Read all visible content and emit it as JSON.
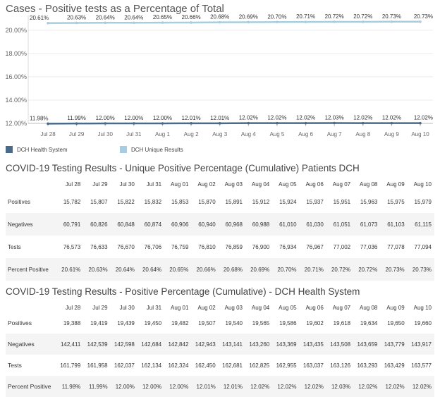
{
  "chart_data": {
    "type": "line",
    "title": "Cases - Positive tests as a Percentage of Total",
    "categories": [
      "Jul 28",
      "Jul 29",
      "Jul 30",
      "Jul 31",
      "Aug 1",
      "Aug 2",
      "Aug 3",
      "Aug 4",
      "Aug 5",
      "Aug 6",
      "Aug 7",
      "Aug 8",
      "Aug 9",
      "Aug 10"
    ],
    "y_ticks": [
      "12.00%",
      "14.00%",
      "16.00%",
      "18.00%",
      "20.00%"
    ],
    "ylim": [
      12,
      20.9
    ],
    "grid": true,
    "legend_position": "bottom-left",
    "series": [
      {
        "name": "DCH Unique Results",
        "color": "#a9cde0",
        "values": [
          20.61,
          20.63,
          20.64,
          20.64,
          20.65,
          20.66,
          20.68,
          20.69,
          20.7,
          20.71,
          20.72,
          20.72,
          20.73,
          20.73
        ],
        "labels": [
          "20.61%",
          "20.63%",
          "20.64%",
          "20.64%",
          "20.65%",
          "20.66%",
          "20.68%",
          "20.69%",
          "20.70%",
          "20.71%",
          "20.72%",
          "20.72%",
          "20.73%",
          "20.73%"
        ]
      },
      {
        "name": "DCH Health System",
        "color": "#4a6a8a",
        "values": [
          11.98,
          11.99,
          12.0,
          12.0,
          12.0,
          12.01,
          12.01,
          12.02,
          12.02,
          12.02,
          12.03,
          12.02,
          12.02,
          12.02
        ],
        "labels": [
          "11.98%",
          "11.99%",
          "12.00%",
          "12.00%",
          "12.00%",
          "12.01%",
          "12.01%",
          "12.02%",
          "12.02%",
          "12.02%",
          "12.03%",
          "12.02%",
          "12.02%",
          "12.02%"
        ]
      }
    ]
  },
  "legend": {
    "health_system": "DCH Health System",
    "unique_results": "DCH Unique Results",
    "health_color": "#4a6a8a",
    "unique_color": "#a9cde0"
  },
  "table1": {
    "title": "COVID-19 Testing Results - Unique Positive Percentage (Cumulative) Patients DCH",
    "headers": [
      "",
      "Jul 28",
      "Jul 29",
      "Jul 30",
      "Jul 31",
      "Aug 01",
      "Aug 02",
      "Aug 03",
      "Aug 04",
      "Aug 05",
      "Aug 06",
      "Aug 07",
      "Aug 08",
      "Aug 09",
      "Aug 10"
    ],
    "rows": [
      [
        "Positives",
        "15,782",
        "15,807",
        "15,822",
        "15,832",
        "15,853",
        "15,870",
        "15,891",
        "15,912",
        "15,924",
        "15,937",
        "15,951",
        "15,963",
        "15,975",
        "15,979"
      ],
      [
        "Negatives",
        "60,791",
        "60,826",
        "60,848",
        "60,874",
        "60,906",
        "60,940",
        "60,968",
        "60,988",
        "61,010",
        "61,030",
        "61,051",
        "61,073",
        "61,103",
        "61,115"
      ],
      [
        "Tests",
        "76,573",
        "76,633",
        "76,670",
        "76,706",
        "76,759",
        "76,810",
        "76,859",
        "76,900",
        "76,934",
        "76,967",
        "77,002",
        "77,036",
        "77,078",
        "77,094"
      ],
      [
        "Percent Positive",
        "20.61%",
        "20.63%",
        "20.64%",
        "20.64%",
        "20.65%",
        "20.66%",
        "20.68%",
        "20.69%",
        "20.70%",
        "20.71%",
        "20.72%",
        "20.72%",
        "20.73%",
        "20.73%"
      ]
    ]
  },
  "table2": {
    "title": "COVID-19 Testing Results - Positive Percentage (Cumulative) - DCH Health System",
    "headers": [
      "",
      "Jul 28",
      "Jul 29",
      "Jul 30",
      "Jul 31",
      "Aug 01",
      "Aug 02",
      "Aug 03",
      "Aug 04",
      "Aug 05",
      "Aug 06",
      "Aug 07",
      "Aug 08",
      "Aug 09",
      "Aug 10"
    ],
    "rows": [
      [
        "Positives",
        "19,388",
        "19,419",
        "19,439",
        "19,450",
        "19,482",
        "19,507",
        "19,540",
        "19,565",
        "19,586",
        "19,602",
        "19,618",
        "19,634",
        "19,650",
        "19,660"
      ],
      [
        "Negatives",
        "142,411",
        "142,539",
        "142,598",
        "142,684",
        "142,842",
        "142,943",
        "143,141",
        "143,260",
        "143,369",
        "143,435",
        "143,508",
        "143,659",
        "143,779",
        "143,917"
      ],
      [
        "Tests",
        "161,799",
        "161,958",
        "162,037",
        "162,134",
        "162,324",
        "162,450",
        "162,681",
        "162,825",
        "162,955",
        "163,037",
        "163,126",
        "163,293",
        "163,429",
        "163,577"
      ],
      [
        "Percent Positive",
        "11.98%",
        "11.99%",
        "12.00%",
        "12.00%",
        "12.00%",
        "12.01%",
        "12.01%",
        "12.02%",
        "12.02%",
        "12.02%",
        "12.03%",
        "12.02%",
        "12.02%",
        "12.02%"
      ]
    ]
  }
}
